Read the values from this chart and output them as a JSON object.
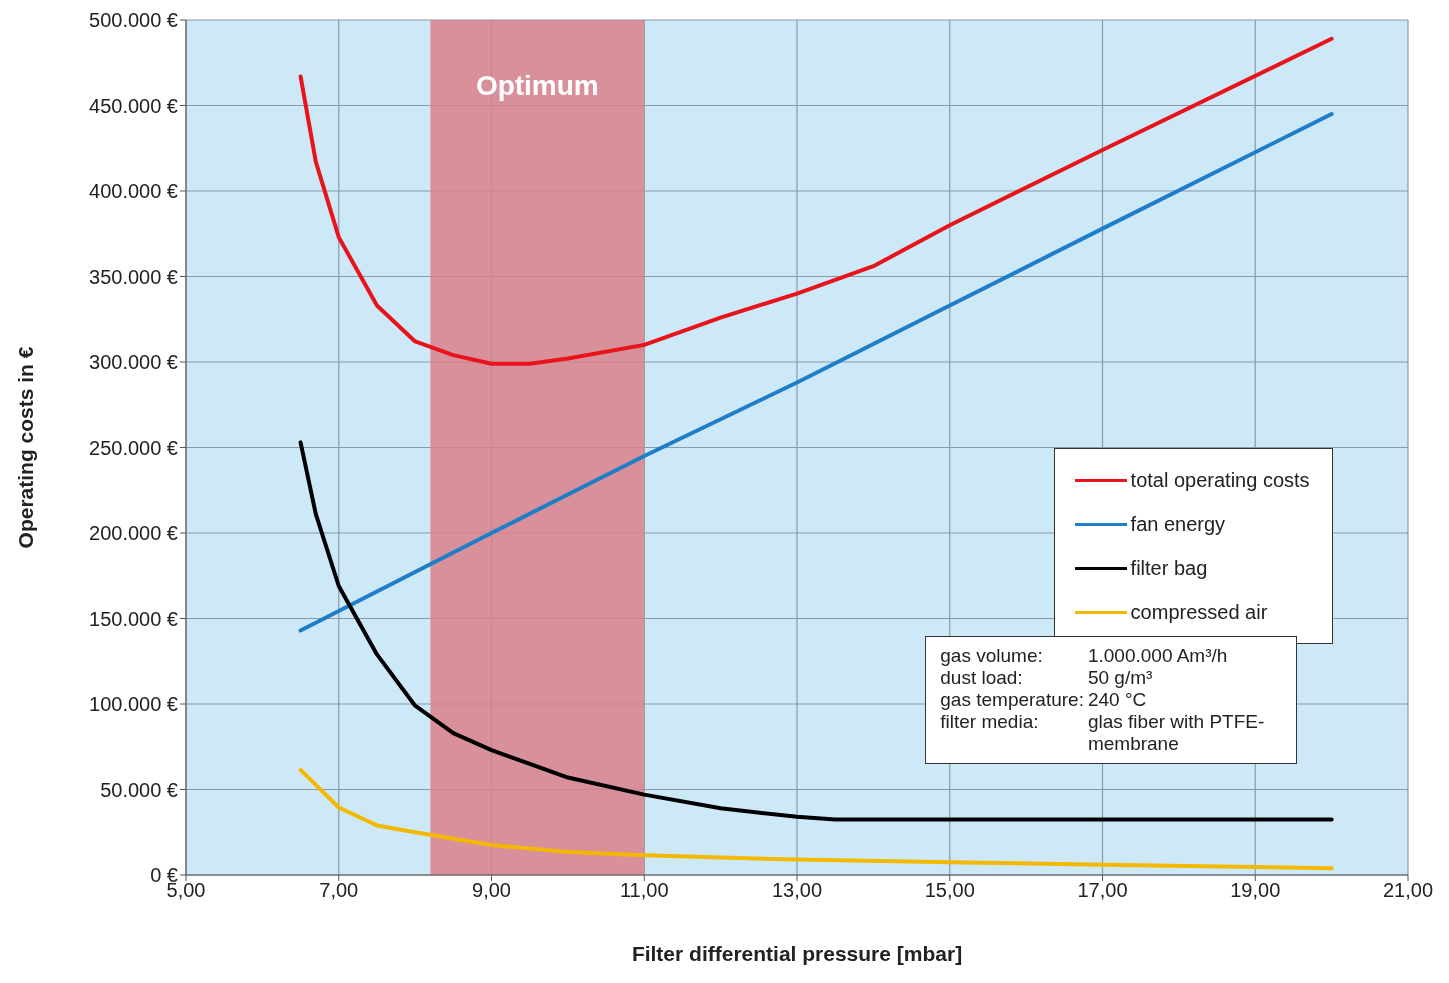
{
  "chart_data": {
    "type": "line",
    "xlabel": "Filter differential pressure [mbar]",
    "ylabel": "Operating costs in €",
    "xlim": [
      5,
      21
    ],
    "xticks": [
      {
        "value": 5,
        "label": "5,00"
      },
      {
        "value": 7,
        "label": "7,00"
      },
      {
        "value": 9,
        "label": "9,00"
      },
      {
        "value": 11,
        "label": "11,00"
      },
      {
        "value": 13,
        "label": "13,00"
      },
      {
        "value": 15,
        "label": "15,00"
      },
      {
        "value": 17,
        "label": "17,00"
      },
      {
        "value": 19,
        "label": "19,00"
      },
      {
        "value": 21,
        "label": "21,00"
      }
    ],
    "ylim": [
      0,
      500000
    ],
    "yticks": [
      {
        "value": 0,
        "label": "0 €"
      },
      {
        "value": 50000,
        "label": "50.000 €"
      },
      {
        "value": 100000,
        "label": "100.000 €"
      },
      {
        "value": 150000,
        "label": "150.000 €"
      },
      {
        "value": 200000,
        "label": "200.000 €"
      },
      {
        "value": 250000,
        "label": "250.000 €"
      },
      {
        "value": 300000,
        "label": "300.000 €"
      },
      {
        "value": 350000,
        "label": "350.000 €"
      },
      {
        "value": 400000,
        "label": "400.000 €"
      },
      {
        "value": 450000,
        "label": "450.000 €"
      },
      {
        "value": 500000,
        "label": "500.000 €"
      }
    ],
    "grid": true,
    "legend": "right",
    "marker": "none",
    "line_style": "solid",
    "bands": [
      {
        "axis": "x",
        "from": 8.2,
        "to": 11,
        "label": "Optimum",
        "color": "#d9808a"
      }
    ],
    "annotations": [
      "gas volume:\t1.000.000 Am³/h",
      "dust load:\t50 g/m³",
      "gas temperature:\t240 °C",
      "filter media:\tglas fiber with PTFE-membrane"
    ],
    "series": [
      {
        "name": "total operating costs",
        "color": "#e8141b",
        "x": [
          6.5,
          6.7,
          7,
          7.5,
          8,
          8.5,
          9,
          9.5,
          10,
          11,
          12,
          13,
          14,
          15,
          17,
          20
        ],
        "values": [
          467000,
          417000,
          373000,
          333000,
          312000,
          304000,
          299000,
          299000,
          302000,
          310000,
          326000,
          340000,
          356000,
          380000,
          424000,
          489000
        ]
      },
      {
        "name": "fan energy",
        "color": "#1e7fc8",
        "x": [
          6.5,
          9,
          11,
          13,
          15,
          17,
          20
        ],
        "values": [
          143000,
          200000,
          245000,
          288000,
          333000,
          378000,
          445000
        ]
      },
      {
        "name": "filter bag",
        "color": "#000000",
        "x": [
          6.5,
          6.7,
          7,
          7.5,
          8,
          8.5,
          9,
          10,
          11,
          12,
          13,
          13.5,
          20
        ],
        "values": [
          253000,
          211000,
          169000,
          129000,
          99000,
          83000,
          73000,
          57000,
          47000,
          39000,
          34000,
          32500,
          32500
        ]
      },
      {
        "name": "compressed air",
        "color": "#f5b800",
        "x": [
          6.5,
          7,
          7.5,
          8,
          9,
          10,
          11,
          13,
          15,
          17,
          20
        ],
        "values": [
          61500,
          39500,
          29000,
          25000,
          17500,
          13500,
          11500,
          9000,
          7500,
          6000,
          4000
        ]
      }
    ]
  }
}
